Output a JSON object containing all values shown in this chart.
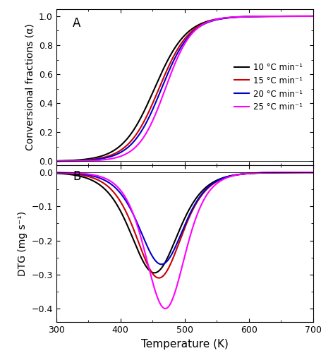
{
  "heating_rates": [
    10,
    15,
    20,
    25
  ],
  "colors": [
    "#000000",
    "#cc0000",
    "#0000cc",
    "#ff00ff"
  ],
  "labels": [
    "10 °C min⁻¹",
    "15 °C min⁻¹",
    "20 °C min⁻¹",
    "25 °C min⁻¹"
  ],
  "T_range": [
    300,
    700
  ],
  "tga_ylim": [
    -0.03,
    1.05
  ],
  "dtg_ylim": [
    -0.44,
    0.02
  ],
  "tga_yticks": [
    0.0,
    0.2,
    0.4,
    0.6,
    0.8,
    1.0
  ],
  "dtg_yticks": [
    -0.4,
    -0.3,
    -0.2,
    -0.1,
    0.0
  ],
  "xlabel": "Temperature (K)",
  "ylabel_top": "Conversional fractions (α)",
  "ylabel_bot": "DTG (mg s⁻¹)",
  "label_A": "A",
  "label_B": "B",
  "tga_centers": [
    453,
    460,
    464,
    470
  ],
  "tga_k_values": [
    0.04,
    0.042,
    0.043,
    0.048
  ],
  "dtg_scale": [
    -0.295,
    -0.31,
    -0.27,
    -0.4
  ],
  "line_width": 1.5
}
